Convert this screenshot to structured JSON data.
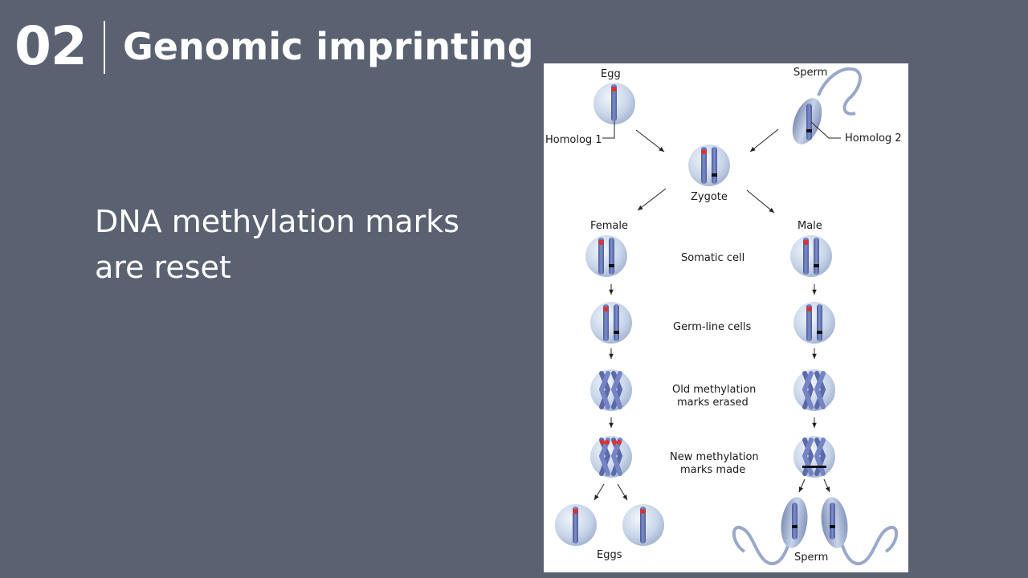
{
  "slide": {
    "number": "02",
    "title": "Genomic imprinting",
    "body": "DNA methylation marks are reset"
  },
  "diagram": {
    "egg_label": "Egg",
    "sperm_label": "Sperm",
    "homolog1_label": "Homolog 1",
    "homolog2_label": "Homolog 2",
    "zygote_label": "Zygote",
    "female_label": "Female",
    "male_label": "Male",
    "stages": {
      "somatic": "Somatic cell",
      "germline": "Germ-line cells",
      "erased_line1": "Old methylation",
      "erased_line2": "marks erased",
      "new_line1": "New methylation",
      "new_line2": "marks made"
    },
    "eggs_label": "Eggs",
    "sperm_bottom_label": "Sperm"
  },
  "colors": {
    "background": "#5a6272",
    "chromosome": "#5a6aa8",
    "maternal_mark": "#e03030",
    "paternal_mark": "#111111",
    "cell": "#c7d4e8"
  }
}
